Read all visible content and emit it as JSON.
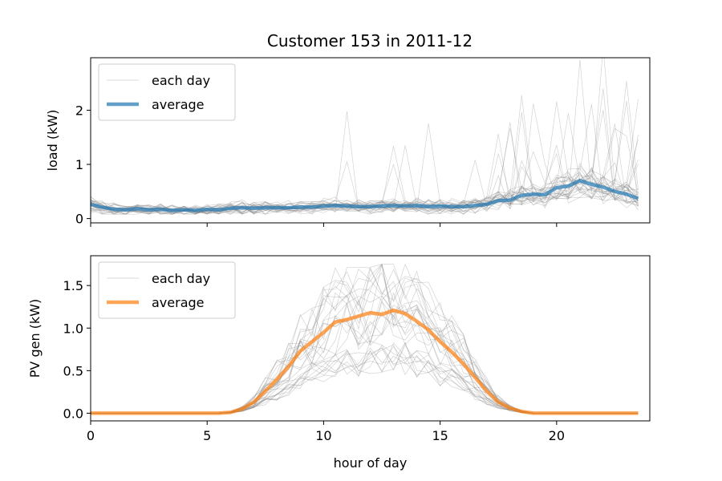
{
  "title": "Customer 153 in 2011-12",
  "chart_data": [
    {
      "type": "line",
      "ylabel": "load (kW)",
      "xlabel": "",
      "xlim": [
        0,
        24
      ],
      "ylim": [
        -0.08,
        2.97
      ],
      "xticks": [
        0,
        5,
        10,
        15,
        20
      ],
      "yticks": [
        0,
        1,
        2
      ],
      "show_xticklabels": false,
      "grid": false,
      "legend": {
        "placement": "upper-left",
        "entries": [
          "each day",
          "average"
        ]
      },
      "x": [
        0,
        0.5,
        1,
        1.5,
        2,
        2.5,
        3,
        3.5,
        4,
        4.5,
        5,
        5.5,
        6,
        6.5,
        7,
        7.5,
        8,
        8.5,
        9,
        9.5,
        10,
        10.5,
        11,
        11.5,
        12,
        12.5,
        13,
        13.5,
        14,
        14.5,
        15,
        15.5,
        16,
        16.5,
        17,
        17.5,
        18,
        18.5,
        19,
        19.5,
        20,
        20.5,
        21,
        21.5,
        22,
        22.5,
        23,
        23.5
      ],
      "series": [
        {
          "name": "average",
          "color": "#1f77b4",
          "values": [
            0.26,
            0.21,
            0.17,
            0.16,
            0.18,
            0.16,
            0.17,
            0.15,
            0.16,
            0.15,
            0.17,
            0.16,
            0.19,
            0.2,
            0.19,
            0.2,
            0.2,
            0.2,
            0.21,
            0.21,
            0.23,
            0.24,
            0.23,
            0.22,
            0.22,
            0.23,
            0.24,
            0.23,
            0.24,
            0.22,
            0.23,
            0.22,
            0.22,
            0.24,
            0.26,
            0.33,
            0.34,
            0.43,
            0.45,
            0.44,
            0.57,
            0.6,
            0.7,
            0.63,
            0.58,
            0.5,
            0.45,
            0.37
          ]
        }
      ],
      "daily_color": "#808080"
    },
    {
      "type": "line",
      "ylabel": "PV gen (kW)",
      "xlabel": "hour of day",
      "xlim": [
        0,
        24
      ],
      "ylim": [
        -0.09,
        1.85
      ],
      "xticks": [
        0,
        5,
        10,
        15,
        20
      ],
      "yticks": [
        0.0,
        0.5,
        1.0,
        1.5
      ],
      "ytick_labels": [
        "0.0",
        "0.5",
        "1.0",
        "1.5"
      ],
      "show_xticklabels": true,
      "grid": false,
      "legend": {
        "placement": "upper-left",
        "entries": [
          "each day",
          "average"
        ]
      },
      "x": [
        0,
        0.5,
        1,
        1.5,
        2,
        2.5,
        3,
        3.5,
        4,
        4.5,
        5,
        5.5,
        6,
        6.5,
        7,
        7.5,
        8,
        8.5,
        9,
        9.5,
        10,
        10.5,
        11,
        11.5,
        12,
        12.5,
        13,
        13.5,
        14,
        14.5,
        15,
        15.5,
        16,
        16.5,
        17,
        17.5,
        18,
        18.5,
        19,
        19.5,
        20,
        20.5,
        21,
        21.5,
        22,
        22.5,
        23,
        23.5
      ],
      "series": [
        {
          "name": "average",
          "color": "#ff7f0e",
          "values": [
            0,
            0,
            0,
            0,
            0,
            0,
            0,
            0,
            0,
            0,
            0,
            0,
            0.01,
            0.05,
            0.13,
            0.26,
            0.4,
            0.55,
            0.73,
            0.84,
            0.95,
            1.07,
            1.1,
            1.14,
            1.18,
            1.16,
            1.21,
            1.17,
            1.08,
            0.98,
            0.84,
            0.72,
            0.58,
            0.42,
            0.26,
            0.13,
            0.06,
            0.02,
            0,
            0,
            0,
            0,
            0,
            0,
            0,
            0,
            0,
            0
          ]
        }
      ],
      "daily_color": "#808080"
    }
  ]
}
